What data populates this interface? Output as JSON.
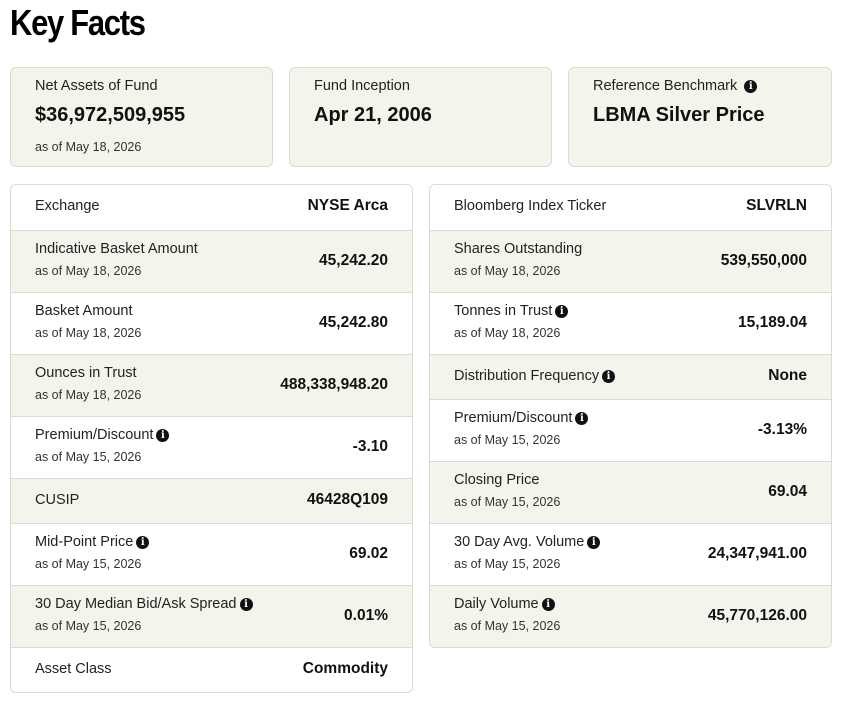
{
  "page": {
    "title": "Key Facts"
  },
  "cards": [
    {
      "label": "Net Assets of Fund",
      "value": "$36,972,509,955",
      "as_of": "as of May 18, 2026",
      "info": false
    },
    {
      "label": "Fund Inception",
      "value": "Apr 21, 2006",
      "as_of": "",
      "info": false
    },
    {
      "label": "Reference Benchmark",
      "value": "LBMA Silver Price",
      "as_of": "",
      "info": true
    }
  ],
  "left_table": [
    {
      "label": "Exchange",
      "value": "NYSE Arca",
      "as_of": "",
      "info": false
    },
    {
      "label": "Indicative Basket Amount",
      "value": "45,242.20",
      "as_of": "as of May 18, 2026",
      "info": false
    },
    {
      "label": "Basket Amount",
      "value": "45,242.80",
      "as_of": "as of May 18, 2026",
      "info": false
    },
    {
      "label": "Ounces in Trust",
      "value": "488,338,948.20",
      "as_of": "as of May 18, 2026",
      "info": false
    },
    {
      "label": "Premium/Discount",
      "value": "-3.10",
      "as_of": "as of May 15, 2026",
      "info": true
    },
    {
      "label": "CUSIP",
      "value": "46428Q109",
      "as_of": "",
      "info": false
    },
    {
      "label": "Mid-Point Price",
      "value": "69.02",
      "as_of": "as of May 15, 2026",
      "info": true
    },
    {
      "label": "30 Day Median Bid/Ask Spread",
      "value": "0.01%",
      "as_of": "as of May 15, 2026",
      "info": true
    },
    {
      "label": "Asset Class",
      "value": "Commodity",
      "as_of": "",
      "info": false
    }
  ],
  "right_table": [
    {
      "label": "Bloomberg Index Ticker",
      "value": "SLVRLN",
      "as_of": "",
      "info": false
    },
    {
      "label": "Shares Outstanding",
      "value": "539,550,000",
      "as_of": "as of May 18, 2026",
      "info": false
    },
    {
      "label": "Tonnes in Trust",
      "value": "15,189.04",
      "as_of": "as of May 18, 2026",
      "info": true
    },
    {
      "label": "Distribution Frequency",
      "value": "None",
      "as_of": "",
      "info": true
    },
    {
      "label": "Premium/Discount",
      "value": "-3.13%",
      "as_of": "as of May 15, 2026",
      "info": true
    },
    {
      "label": "Closing Price",
      "value": "69.04",
      "as_of": "as of May 15, 2026",
      "info": false
    },
    {
      "label": "30 Day Avg. Volume",
      "value": "24,347,941.00",
      "as_of": "as of May 15, 2026",
      "info": true
    },
    {
      "label": "Daily Volume",
      "value": "45,770,126.00",
      "as_of": "as of May 15, 2026",
      "info": true
    }
  ],
  "icons": {
    "info": "info-icon",
    "info_glyph": "i"
  },
  "colors": {
    "card_bg": "#f5f4ec",
    "border": "#dcdbd2",
    "text": "#111111"
  }
}
